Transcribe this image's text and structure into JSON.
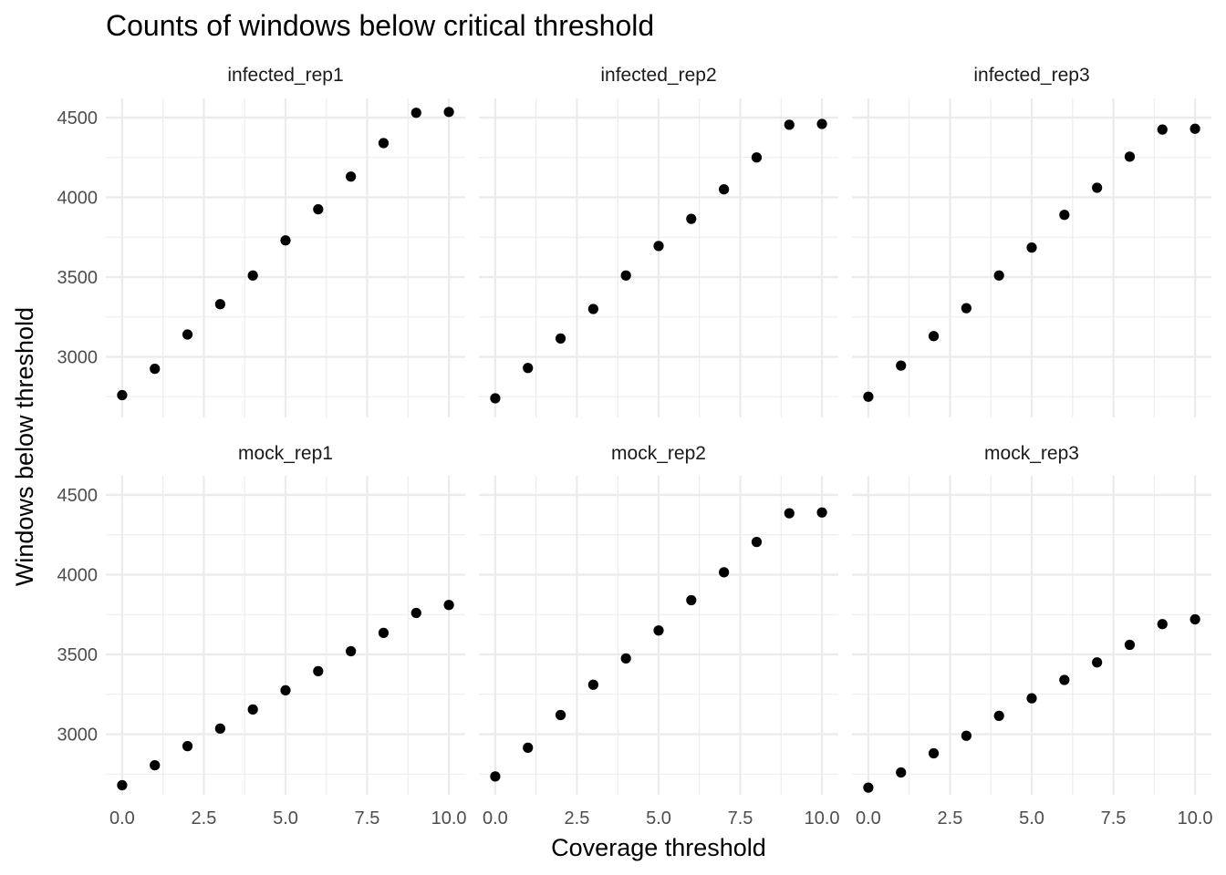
{
  "chart_data": {
    "type": "scatter",
    "title": "Counts of windows below critical threshold",
    "xlabel": "Coverage threshold",
    "ylabel": "Windows below threshold",
    "xlim": [
      -0.5,
      10.5
    ],
    "ylim": [
      2620,
      4620
    ],
    "x_ticks": [
      0,
      2.5,
      5,
      7.5,
      10
    ],
    "x_tick_labels": [
      "0.0",
      "2.5",
      "5.0",
      "7.5",
      "10.0"
    ],
    "y_ticks": [
      3000,
      3500,
      4000,
      4500
    ],
    "y_tick_labels": [
      "3000",
      "3500",
      "4000",
      "4500"
    ],
    "grid": true,
    "layout": "facet-2x3",
    "point_color": "#000000",
    "x": [
      0,
      1,
      2,
      3,
      4,
      5,
      6,
      7,
      8,
      9,
      10
    ],
    "panels": [
      {
        "name": "infected_rep1",
        "values": [
          2760,
          2925,
          3140,
          3330,
          3510,
          3730,
          3925,
          4130,
          4340,
          4530,
          4535
        ]
      },
      {
        "name": "infected_rep2",
        "values": [
          2740,
          2930,
          3115,
          3300,
          3510,
          3695,
          3865,
          4050,
          4250,
          4455,
          4460
        ]
      },
      {
        "name": "infected_rep3",
        "values": [
          2750,
          2945,
          3130,
          3305,
          3510,
          3685,
          3890,
          4060,
          4255,
          4425,
          4430
        ]
      },
      {
        "name": "mock_rep1",
        "values": [
          2680,
          2805,
          2925,
          3035,
          3155,
          3275,
          3395,
          3520,
          3635,
          3760,
          3810
        ]
      },
      {
        "name": "mock_rep2",
        "values": [
          2735,
          2915,
          3120,
          3310,
          3475,
          3650,
          3840,
          4015,
          4205,
          4385,
          4390
        ]
      },
      {
        "name": "mock_rep3",
        "values": [
          2665,
          2760,
          2880,
          2990,
          3115,
          3225,
          3340,
          3450,
          3560,
          3690,
          3720
        ]
      }
    ]
  }
}
